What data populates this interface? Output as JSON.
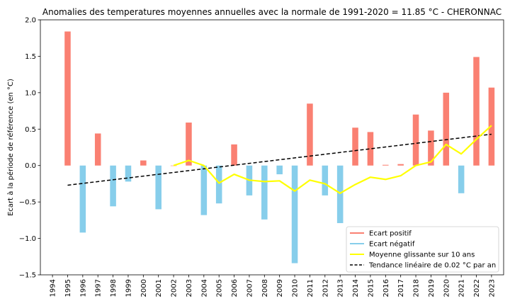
{
  "chart_data": {
    "type": "bar",
    "title": "Anomalies des temperatures moyennes annuelles avec la normale de 1991-2020 = 11.85 °C - CHERONNAC",
    "xlabel": "",
    "ylabel": "Ecart à la période de référence (en °C)",
    "ylim": [
      -1.5,
      2.0
    ],
    "yticks": [
      -1.5,
      -1.0,
      -0.5,
      0.0,
      0.5,
      1.0,
      1.5,
      2.0
    ],
    "ytick_labels": [
      "−1.5",
      "−1.0",
      "−0.5",
      "0.0",
      "0.5",
      "1.0",
      "1.5",
      "2.0"
    ],
    "categories": [
      "1994",
      "1995",
      "1996",
      "1997",
      "1998",
      "1999",
      "2000",
      "2001",
      "2002",
      "2003",
      "2004",
      "2005",
      "2006",
      "2007",
      "2008",
      "2009",
      "2010",
      "2011",
      "2012",
      "2013",
      "2014",
      "2015",
      "2016",
      "2017",
      "2018",
      "2019",
      "2020",
      "2021",
      "2022",
      "2023"
    ],
    "series": [
      {
        "name": "Anomalies",
        "values": [
          null,
          1.84,
          -0.92,
          0.44,
          -0.56,
          -0.22,
          0.07,
          -0.6,
          0.0,
          0.59,
          -0.68,
          -0.52,
          0.29,
          -0.41,
          -0.74,
          -0.12,
          -1.34,
          0.85,
          -0.41,
          -0.79,
          0.52,
          0.46,
          0.01,
          0.02,
          0.7,
          0.48,
          1.0,
          -0.38,
          1.49,
          1.07
        ]
      },
      {
        "name": "Moyenne glissante sur 10 ans",
        "values": [
          null,
          null,
          null,
          null,
          null,
          null,
          null,
          null,
          0.0,
          0.07,
          0.0,
          -0.24,
          -0.12,
          -0.2,
          -0.22,
          -0.21,
          -0.35,
          -0.2,
          -0.25,
          -0.38,
          -0.26,
          -0.16,
          -0.19,
          -0.14,
          0.0,
          0.05,
          0.29,
          0.16,
          0.36,
          0.55
        ]
      },
      {
        "name": "Tendance linéaire de 0.02 °C par an",
        "values": [
          null,
          -0.27,
          -0.245,
          -0.22,
          -0.195,
          -0.17,
          -0.145,
          -0.12,
          -0.095,
          -0.07,
          -0.045,
          -0.02,
          0.005,
          0.03,
          0.055,
          0.08,
          0.105,
          0.13,
          0.155,
          0.18,
          0.205,
          0.23,
          0.255,
          0.28,
          0.305,
          0.33,
          0.355,
          0.38,
          0.405,
          0.43
        ]
      }
    ],
    "legend": {
      "placement": "lower-right",
      "entries": [
        {
          "label": "Ecart positif",
          "color": "#fa8072",
          "style": "solid"
        },
        {
          "label": "Ecart négatif",
          "color": "#87ceeb",
          "style": "solid"
        },
        {
          "label": "Moyenne glissante sur 10 ans",
          "color": "#ffff00",
          "style": "solid"
        },
        {
          "label": "Tendance linéaire de 0.02 °C par an",
          "color": "#000000",
          "style": "dashed"
        }
      ]
    },
    "colors": {
      "positive": "#fa8072",
      "negative": "#87ceeb",
      "rolling": "#ffff00",
      "trend": "#000000"
    },
    "grid": false
  }
}
